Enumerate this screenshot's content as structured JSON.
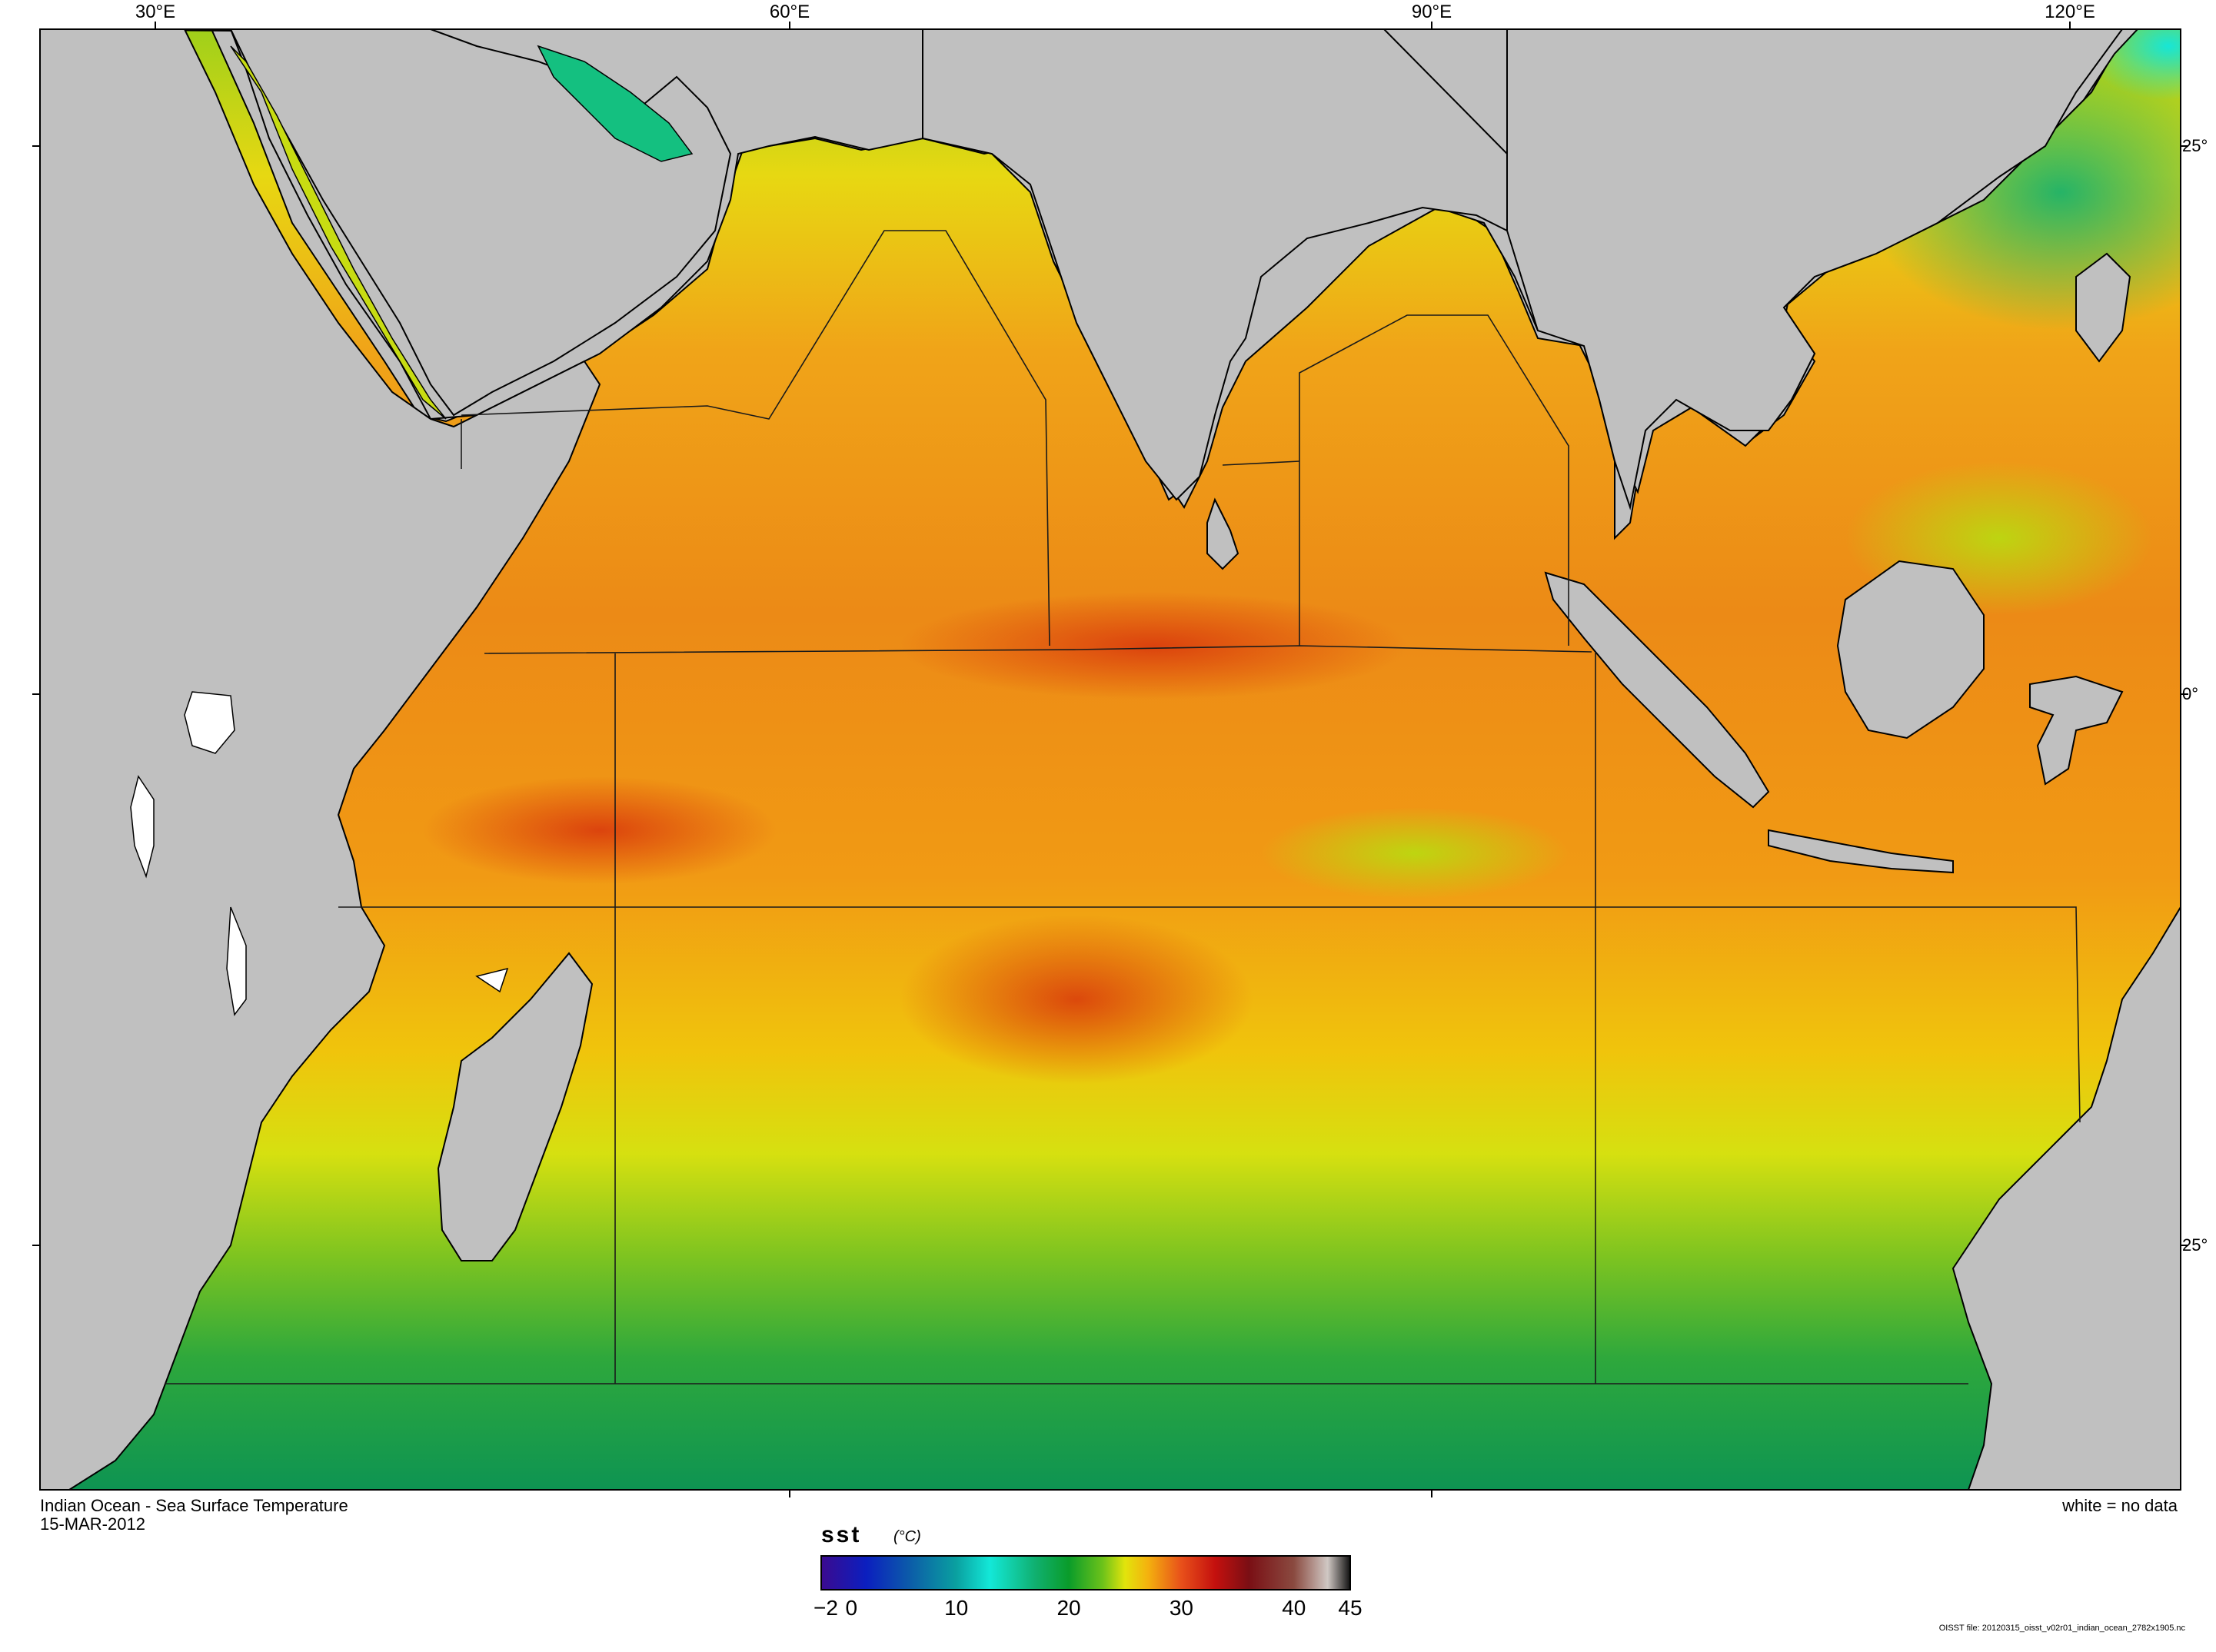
{
  "map": {
    "title": "Indian Ocean - Sea Surface Temperature",
    "date": "15-MAR-2012",
    "no_data_note": "white = no data",
    "source_file": "OISST file: 20120315_oisst_v02r01_indian_ocean_2782x1905.nc",
    "lon_labels": [
      "30°E",
      "60°E",
      "90°E",
      "120°E"
    ],
    "lat_labels": [
      "25°",
      "0°",
      "25°"
    ],
    "colors": {
      "land": "#c0c0c0",
      "frame": "#000000",
      "no_data": "#ffffff"
    }
  },
  "colorbar": {
    "variable": "sst",
    "units": "(°C)",
    "min": -2,
    "max": 45,
    "ticks": [
      "−2",
      "0",
      "10",
      "20",
      "30",
      "40",
      "45"
    ],
    "tick_values": [
      -2,
      0,
      10,
      20,
      30,
      40,
      45
    ],
    "stops": [
      {
        "value": -2,
        "color": "#3b0a8f"
      },
      {
        "value": 2,
        "color": "#0b1fbf"
      },
      {
        "value": 6,
        "color": "#0c5ea8"
      },
      {
        "value": 10,
        "color": "#0aa0a0"
      },
      {
        "value": 13,
        "color": "#13e8d8"
      },
      {
        "value": 17,
        "color": "#10b070"
      },
      {
        "value": 20,
        "color": "#0a9c2a"
      },
      {
        "value": 23,
        "color": "#6cc21a"
      },
      {
        "value": 25,
        "color": "#e2e40c"
      },
      {
        "value": 27,
        "color": "#f4b20e"
      },
      {
        "value": 30,
        "color": "#e8501a"
      },
      {
        "value": 33,
        "color": "#c4100e"
      },
      {
        "value": 36,
        "color": "#7a0f14"
      },
      {
        "value": 40,
        "color": "#8a4a40"
      },
      {
        "value": 43,
        "color": "#d0c8c4"
      },
      {
        "value": 45,
        "color": "#101010"
      }
    ]
  }
}
